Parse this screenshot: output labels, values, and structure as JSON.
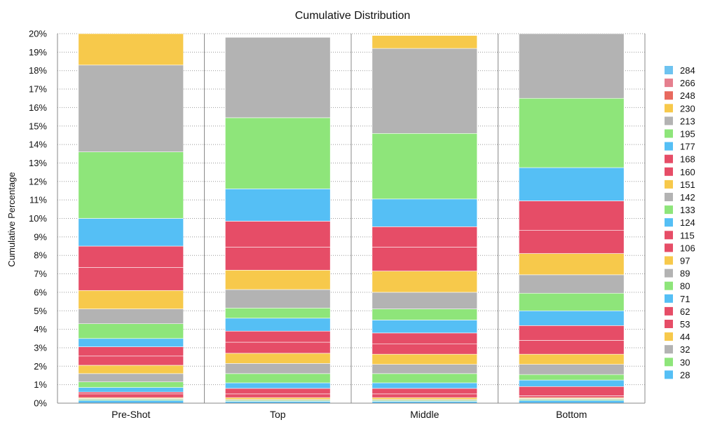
{
  "chart_data": {
    "type": "bar",
    "stacked": true,
    "title": "Cumulative Distribution",
    "xlabel": "",
    "ylabel": "Cumulative Percentage",
    "ylim": [
      0,
      20
    ],
    "ytick_labels": [
      "0%",
      "1%",
      "2%",
      "3%",
      "4%",
      "5%",
      "6%",
      "7%",
      "8%",
      "9%",
      "10%",
      "11%",
      "12%",
      "13%",
      "14%",
      "15%",
      "16%",
      "17%",
      "18%",
      "19%",
      "20%"
    ],
    "grid": true,
    "legend_position": "right",
    "categories": [
      "Pre-Shot",
      "Top",
      "Middle",
      "Bottom"
    ],
    "series": [
      {
        "name": "28",
        "color": "#55bff5",
        "values": [
          0.15,
          0.1,
          0.1,
          0.15
        ]
      },
      {
        "name": "30",
        "color": "#8ee57a",
        "values": [
          0.05,
          0.05,
          0.05,
          0.05
        ]
      },
      {
        "name": "32",
        "color": "#b3b3b3",
        "values": [
          0.05,
          0.05,
          0.05,
          0.05
        ]
      },
      {
        "name": "44",
        "color": "#f7c94b",
        "values": [
          0.05,
          0.1,
          0.1,
          0.05
        ]
      },
      {
        "name": "53",
        "color": "#e64d67",
        "values": [
          0.2,
          0.2,
          0.2,
          0.1
        ]
      },
      {
        "name": "62",
        "color": "#e64d67",
        "values": [
          0.1,
          0.3,
          0.3,
          0.5
        ]
      },
      {
        "name": "71",
        "color": "#55bff5",
        "values": [
          0.25,
          0.3,
          0.3,
          0.35
        ]
      },
      {
        "name": "80",
        "color": "#8ee57a",
        "values": [
          0.3,
          0.5,
          0.5,
          0.3
        ]
      },
      {
        "name": "89",
        "color": "#b3b3b3",
        "values": [
          0.45,
          0.55,
          0.5,
          0.55
        ]
      },
      {
        "name": "97",
        "color": "#f7c94b",
        "values": [
          0.45,
          0.55,
          0.55,
          0.55
        ]
      },
      {
        "name": "106",
        "color": "#e64d67",
        "values": [
          0.5,
          0.6,
          0.55,
          0.75
        ]
      },
      {
        "name": "115",
        "color": "#e64d67",
        "values": [
          0.5,
          0.6,
          0.6,
          0.8
        ]
      },
      {
        "name": "124",
        "color": "#55bff5",
        "values": [
          0.45,
          0.7,
          0.7,
          0.8
        ]
      },
      {
        "name": "133",
        "color": "#8ee57a",
        "values": [
          0.8,
          0.55,
          0.6,
          0.95
        ]
      },
      {
        "name": "142",
        "color": "#b3b3b3",
        "values": [
          0.8,
          1.0,
          0.9,
          1.0
        ]
      },
      {
        "name": "151",
        "color": "#f7c94b",
        "values": [
          1.0,
          1.05,
          1.15,
          1.15
        ]
      },
      {
        "name": "160",
        "color": "#e64d67",
        "values": [
          1.25,
          1.25,
          1.3,
          1.25
        ]
      },
      {
        "name": "168",
        "color": "#e64d67",
        "values": [
          1.15,
          1.4,
          1.1,
          1.6
        ]
      },
      {
        "name": "177",
        "color": "#55bff5",
        "values": [
          1.5,
          1.75,
          1.5,
          1.8
        ]
      },
      {
        "name": "195",
        "color": "#8ee57a",
        "values": [
          3.6,
          3.85,
          3.55,
          3.75
        ]
      },
      {
        "name": "213",
        "color": "#b3b3b3",
        "values": [
          4.7,
          4.35,
          4.6,
          3.5
        ]
      },
      {
        "name": "230",
        "color": "#f7c94b",
        "values": [
          1.7,
          0.0,
          0.7,
          0.0
        ]
      },
      {
        "name": "248",
        "color": "#e8695e",
        "values": [
          0,
          0,
          0,
          0
        ]
      },
      {
        "name": "266",
        "color": "#e57f8e",
        "values": [
          0,
          0,
          0,
          0
        ]
      },
      {
        "name": "284",
        "color": "#6ec3f0",
        "values": [
          0,
          0,
          0,
          0
        ]
      }
    ]
  }
}
